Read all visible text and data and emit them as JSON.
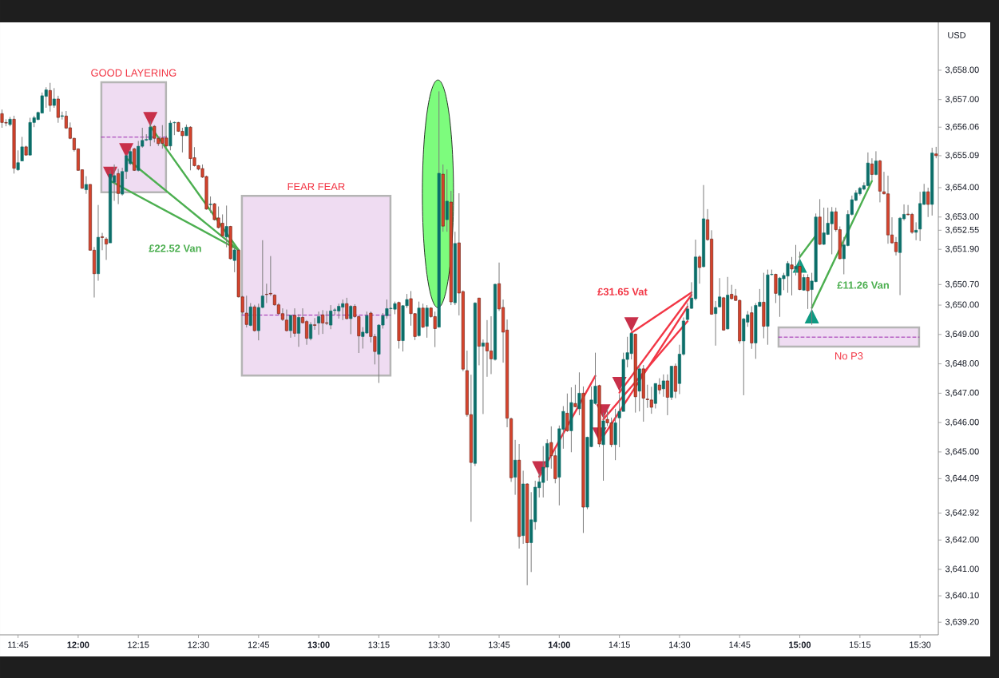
{
  "chart_data": {
    "type": "candlestick",
    "x": [
      11.6833,
      11.7,
      11.7167,
      11.7333,
      11.75,
      11.7667,
      11.7833,
      11.8,
      11.8167,
      11.8333,
      11.85,
      11.8667,
      11.8833,
      11.9,
      11.9167,
      11.9333,
      11.95,
      11.9667,
      11.9833,
      12,
      12.0167,
      12.0333,
      12.05,
      12.0667,
      12.0833,
      12.1,
      12.1167,
      12.1333,
      12.15,
      12.1667,
      12.1833,
      12.2,
      12.2167,
      12.2333,
      12.25,
      12.2667,
      12.2833,
      12.3,
      12.3167,
      12.3333,
      12.35,
      12.3667,
      12.3833,
      12.4,
      12.4167,
      12.4333,
      12.45,
      12.4667,
      12.4833,
      12.5,
      12.5167,
      12.5333,
      12.55,
      12.5667,
      12.5833,
      12.6,
      12.6167,
      12.6333,
      12.65,
      12.6667,
      12.6833,
      12.7,
      12.7167,
      12.7333,
      12.75,
      12.7667,
      12.7833,
      12.8,
      12.8167,
      12.8333,
      12.85,
      12.8667,
      12.8833,
      12.9,
      12.9167,
      12.9333,
      12.95,
      12.9667,
      12.9833,
      13,
      13.0167,
      13.0333,
      13.05,
      13.0667,
      13.0833,
      13.1,
      13.1167,
      13.1333,
      13.15,
      13.1667,
      13.1833,
      13.2,
      13.2167,
      13.2333,
      13.25,
      13.2667,
      13.2833,
      13.3,
      13.3167,
      13.3333,
      13.35,
      13.3667,
      13.3833,
      13.4,
      13.4167,
      13.4333,
      13.45,
      13.4667,
      13.4833,
      13.5,
      13.5167,
      13.5333,
      13.55,
      13.5667,
      13.5833,
      13.6,
      13.6167,
      13.6333,
      13.65,
      13.6667,
      13.6833,
      13.7,
      13.7167,
      13.7333,
      13.75,
      13.7667,
      13.7833,
      13.8,
      13.8167,
      13.8333,
      13.85,
      13.8667,
      13.8833,
      13.9,
      13.9167,
      13.9333,
      13.95,
      13.9667,
      13.9833,
      14,
      14.0167,
      14.0333,
      14.05,
      14.0667,
      14.0833,
      14.1,
      14.1167,
      14.1333,
      14.15,
      14.1667,
      14.1833,
      14.2,
      14.2167,
      14.2333,
      14.25,
      14.2667,
      14.2833,
      14.3,
      14.3167,
      14.3333,
      14.35,
      14.3667,
      14.3833,
      14.4,
      14.4167,
      14.4333,
      14.45,
      14.4667,
      14.4833,
      14.5,
      14.5167,
      14.5333,
      14.55,
      14.5667,
      14.5833,
      14.6,
      14.6167,
      14.6333,
      14.65,
      14.6667,
      14.6833,
      14.7,
      14.7167,
      14.7333,
      14.75,
      14.7667,
      14.7833,
      14.8,
      14.8167,
      14.8333,
      14.85,
      14.8667,
      14.8833,
      14.9,
      14.9167,
      14.9333,
      14.95,
      14.9667,
      14.9833,
      15,
      15.0167,
      15.0333,
      15.05,
      15.0667,
      15.0833,
      15.1,
      15.1167,
      15.1333,
      15.15,
      15.1667,
      15.1833,
      15.2,
      15.2167,
      15.2333,
      15.25,
      15.2667,
      15.2833,
      15.3,
      15.3167,
      15.3333,
      15.35,
      15.3667,
      15.3833,
      15.4,
      15.4167,
      15.4333,
      15.45,
      15.4667,
      15.4833,
      15.5,
      15.5167,
      15.5333,
      15.55,
      15.5667
    ],
    "ohlc": [
      [
        3656.52,
        3656.66,
        3656.04,
        3656.22
      ],
      [
        3656.22,
        3656.33,
        3656.09,
        3656.2
      ],
      [
        3656.15,
        3656.41,
        3656.09,
        3656.33
      ],
      [
        3656.33,
        3656.45,
        3654.48,
        3654.66
      ],
      [
        3654.61,
        3655.27,
        3654.57,
        3654.85
      ],
      [
        3654.91,
        3655.73,
        3654.9,
        3655.39
      ],
      [
        3655.39,
        3655.43,
        3655.09,
        3655.11
      ],
      [
        3655.11,
        3656.38,
        3655.09,
        3656.22
      ],
      [
        3656.22,
        3656.45,
        3656.06,
        3656.38
      ],
      [
        3656.32,
        3656.59,
        3656.3,
        3656.56
      ],
      [
        3656.54,
        3657.24,
        3656.53,
        3657.13
      ],
      [
        3657.11,
        3657.42,
        3656.72,
        3657.33
      ],
      [
        3657.31,
        3657.57,
        3656.59,
        3656.8
      ],
      [
        3656.8,
        3657.39,
        3656.72,
        3657.02
      ],
      [
        3657.02,
        3657.13,
        3656.21,
        3656.39
      ],
      [
        3656.43,
        3656.59,
        3656.32,
        3656.45
      ],
      [
        3656.44,
        3656.61,
        3656.0,
        3656.03
      ],
      [
        3656.04,
        3656.22,
        3655.65,
        3655.68
      ],
      [
        3655.68,
        3655.7,
        3655.23,
        3655.29
      ],
      [
        3655.32,
        3655.34,
        3654.58,
        3654.59
      ],
      [
        3654.61,
        3654.62,
        3653.96,
        3653.98
      ],
      [
        3653.93,
        3654.39,
        3653.79,
        3654.11
      ],
      [
        3654.11,
        3654.12,
        3651.85,
        3651.87
      ],
      [
        3651.87,
        3651.98,
        3650.26,
        3651.07
      ],
      [
        3651.07,
        3653.41,
        3650.83,
        3652.31
      ],
      [
        3652.33,
        3652.46,
        3651.87,
        3652.3
      ],
      [
        3652.25,
        3652.31,
        3651.54,
        3652.08
      ],
      [
        3652.12,
        3654.59,
        3652.12,
        3654.46
      ],
      [
        3654.18,
        3654.79,
        3653.55,
        3654.41
      ],
      [
        3654.48,
        3654.64,
        3653.44,
        3653.8
      ],
      [
        3653.78,
        3654.68,
        3653.73,
        3654.55
      ],
      [
        3654.55,
        3655.13,
        3654.3,
        3655.09
      ],
      [
        3654.82,
        3655.32,
        3654.77,
        3655.23
      ],
      [
        3655.32,
        3655.36,
        3654.57,
        3654.59
      ],
      [
        3654.59,
        3655.59,
        3654.55,
        3655.41
      ],
      [
        3655.41,
        3656.04,
        3655.36,
        3655.61
      ],
      [
        3655.62,
        3655.82,
        3655.59,
        3655.64
      ],
      [
        3655.63,
        3656.27,
        3655.41,
        3656.06
      ],
      [
        3656.09,
        3656.13,
        3655.54,
        3655.68
      ],
      [
        3655.68,
        3655.72,
        3655.42,
        3655.5
      ],
      [
        3655.69,
        3656.13,
        3655.33,
        3655.51
      ],
      [
        3655.69,
        3655.77,
        3655.4,
        3655.42
      ],
      [
        3655.42,
        3656.29,
        3655.27,
        3656.2
      ],
      [
        3656.21,
        3656.25,
        3655.79,
        3656.22
      ],
      [
        3656.22,
        3656.24,
        3655.9,
        3655.92
      ],
      [
        3655.92,
        3656.04,
        3655.2,
        3655.77
      ],
      [
        3655.77,
        3656.15,
        3655.77,
        3656.06
      ],
      [
        3656.06,
        3656.09,
        3654.59,
        3654.99
      ],
      [
        3655.02,
        3655.38,
        3654.72,
        3654.75
      ],
      [
        3654.75,
        3654.77,
        3654.59,
        3654.63
      ],
      [
        3654.65,
        3654.79,
        3654.33,
        3654.36
      ],
      [
        3654.38,
        3654.41,
        3653.25,
        3653.27
      ],
      [
        3653.42,
        3653.7,
        3653.14,
        3653.44
      ],
      [
        3653.45,
        3653.48,
        3652.88,
        3652.91
      ],
      [
        3652.97,
        3653.36,
        3652.61,
        3652.64
      ],
      [
        3652.79,
        3653.09,
        3652.32,
        3652.36
      ],
      [
        3652.32,
        3653.39,
        3651.97,
        3652.68
      ],
      [
        3652.68,
        3652.7,
        3651.55,
        3651.58
      ],
      [
        3651.52,
        3651.97,
        3651.12,
        3651.88
      ],
      [
        3651.87,
        3651.91,
        3650.26,
        3650.28
      ],
      [
        3650.28,
        3650.32,
        3649.69,
        3649.76
      ],
      [
        3649.73,
        3650.32,
        3649.24,
        3649.34
      ],
      [
        3649.31,
        3650.07,
        3649.28,
        3649.94
      ],
      [
        3649.94,
        3650.01,
        3649.1,
        3649.13
      ],
      [
        3649.13,
        3650.05,
        3648.8,
        3649.92
      ],
      [
        3649.92,
        3652.21,
        3649.89,
        3650.31
      ],
      [
        3650.37,
        3650.73,
        3650.07,
        3650.36
      ],
      [
        3650.4,
        3651.67,
        3650.31,
        3650.38
      ],
      [
        3650.34,
        3650.37,
        3649.98,
        3650.01
      ],
      [
        3650.01,
        3650.07,
        3649.67,
        3649.71
      ],
      [
        3649.71,
        3649.89,
        3649.46,
        3649.51
      ],
      [
        3649.49,
        3649.85,
        3649.1,
        3649.13
      ],
      [
        3649.13,
        3649.67,
        3648.89,
        3649.65
      ],
      [
        3649.65,
        3649.89,
        3648.92,
        3649.04
      ],
      [
        3649.04,
        3649.69,
        3648.58,
        3649.58
      ],
      [
        3649.58,
        3649.89,
        3649.37,
        3649.4
      ],
      [
        3649.44,
        3649.49,
        3648.65,
        3648.87
      ],
      [
        3648.86,
        3649.42,
        3648.8,
        3649.34
      ],
      [
        3649.33,
        3649.56,
        3649.16,
        3649.31
      ],
      [
        3649.39,
        3649.78,
        3648.99,
        3649.61
      ],
      [
        3649.67,
        3649.83,
        3649.02,
        3649.39
      ],
      [
        3649.4,
        3649.8,
        3649.32,
        3649.38
      ],
      [
        3649.32,
        3650.0,
        3649.18,
        3649.8
      ],
      [
        3649.82,
        3649.9,
        3649.67,
        3649.84
      ],
      [
        3649.8,
        3650.05,
        3649.54,
        3649.96
      ],
      [
        3649.93,
        3650.19,
        3649.49,
        3650.05
      ],
      [
        3650.05,
        3650.25,
        3649.51,
        3649.54
      ],
      [
        3649.54,
        3650.0,
        3649.01,
        3649.96
      ],
      [
        3649.96,
        3650.03,
        3649.57,
        3649.61
      ],
      [
        3649.61,
        3649.64,
        3648.37,
        3648.95
      ],
      [
        3648.93,
        3649.25,
        3648.52,
        3649.08
      ],
      [
        3649.05,
        3649.78,
        3649.02,
        3649.64
      ],
      [
        3649.73,
        3649.78,
        3648.73,
        3648.93
      ],
      [
        3648.93,
        3649.02,
        3647.98,
        3648.42
      ],
      [
        3648.33,
        3649.35,
        3647.35,
        3649.32
      ],
      [
        3649.32,
        3649.73,
        3649.2,
        3649.64
      ],
      [
        3649.64,
        3650.19,
        3649.54,
        3649.88
      ],
      [
        3649.88,
        3649.93,
        3649.86,
        3649.89
      ],
      [
        3649.86,
        3650.12,
        3649.69,
        3650.05
      ],
      [
        3650.09,
        3650.12,
        3648.52,
        3648.79
      ],
      [
        3648.79,
        3650.0,
        3648.42,
        3649.98
      ],
      [
        3649.98,
        3650.38,
        3649.9,
        3650.19
      ],
      [
        3650.22,
        3650.48,
        3649.3,
        3649.71
      ],
      [
        3649.71,
        3649.73,
        3648.81,
        3648.93
      ],
      [
        3648.96,
        3650.12,
        3648.93,
        3649.9
      ],
      [
        3649.9,
        3650.05,
        3649.22,
        3649.25
      ],
      [
        3649.28,
        3650.0,
        3648.89,
        3649.9
      ],
      [
        3649.9,
        3649.93,
        3649.57,
        3649.61
      ],
      [
        3649.61,
        3649.78,
        3648.57,
        3649.2
      ],
      [
        3649.25,
        3657.28,
        3649.25,
        3654.49
      ],
      [
        3654.46,
        3654.79,
        3652.5,
        3652.69
      ],
      [
        3652.91,
        3654.62,
        3652.5,
        3653.54
      ],
      [
        3653.51,
        3653.89,
        3650.0,
        3650.11
      ],
      [
        3650.08,
        3652.5,
        3650.0,
        3652.1
      ],
      [
        3652.12,
        3653.81,
        3649.65,
        3650.41
      ],
      [
        3650.46,
        3650.5,
        3647.75,
        3647.82
      ],
      [
        3647.77,
        3648.45,
        3646.2,
        3646.27
      ],
      [
        3646.27,
        3647.63,
        3642.62,
        3644.64
      ],
      [
        3644.61,
        3650.1,
        3644.52,
        3650.07
      ],
      [
        3650.24,
        3650.25,
        3647.95,
        3648.6
      ],
      [
        3648.6,
        3648.83,
        3646.29,
        3648.71
      ],
      [
        3648.71,
        3649.49,
        3647.56,
        3648.44
      ],
      [
        3648.44,
        3649.62,
        3647.65,
        3648.17
      ],
      [
        3648.15,
        3650.73,
        3648.11,
        3650.71
      ],
      [
        3650.73,
        3651.45,
        3649.8,
        3649.87
      ],
      [
        3649.92,
        3650.19,
        3648.04,
        3649.08
      ],
      [
        3649.15,
        3649.51,
        3645.84,
        3646.15
      ],
      [
        3646.13,
        3646.17,
        3643.98,
        3644.12
      ],
      [
        3644.14,
        3645.41,
        3643.54,
        3644.72
      ],
      [
        3644.72,
        3645.27,
        3641.71,
        3642.12
      ],
      [
        3642.15,
        3644.36,
        3641.87,
        3643.91
      ],
      [
        3643.91,
        3643.93,
        3640.46,
        3641.91
      ],
      [
        3641.91,
        3643.63,
        3640.91,
        3642.69
      ],
      [
        3642.62,
        3644.02,
        3642.35,
        3643.8
      ],
      [
        3643.78,
        3644.27,
        3643.45,
        3643.98
      ],
      [
        3643.96,
        3645.2,
        3643.45,
        3644.48
      ],
      [
        3644.48,
        3645.43,
        3644.02,
        3645.29
      ],
      [
        3645.32,
        3645.87,
        3644.43,
        3644.87
      ],
      [
        3644.87,
        3645.07,
        3643.93,
        3644.09
      ],
      [
        3644.14,
        3645.9,
        3643.18,
        3645.79
      ],
      [
        3645.77,
        3646.56,
        3645.11,
        3646.38
      ],
      [
        3646.32,
        3646.99,
        3645.68,
        3645.72
      ],
      [
        3645.72,
        3647.2,
        3644.99,
        3646.68
      ],
      [
        3646.65,
        3647.29,
        3646.52,
        3646.54
      ],
      [
        3646.47,
        3647.71,
        3646.25,
        3647.0
      ],
      [
        3647.0,
        3647.23,
        3642.24,
        3643.12
      ],
      [
        3643.12,
        3645.52,
        3643.05,
        3645.5
      ],
      [
        3645.18,
        3647.23,
        3645.16,
        3646.77
      ],
      [
        3646.65,
        3648.38,
        3646.61,
        3647.24
      ],
      [
        3647.26,
        3647.29,
        3645.16,
        3645.27
      ],
      [
        3645.25,
        3646.34,
        3644.02,
        3646.06
      ],
      [
        3646.11,
        3646.47,
        3645.88,
        3645.99
      ],
      [
        3645.99,
        3646.17,
        3645.16,
        3645.25
      ],
      [
        3645.25,
        3646.47,
        3644.72,
        3645.99
      ],
      [
        3646.16,
        3646.97,
        3645.16,
        3646.38
      ],
      [
        3646.38,
        3648.38,
        3646.38,
        3648.15
      ],
      [
        3648.15,
        3648.92,
        3647.88,
        3648.38
      ],
      [
        3648.35,
        3649.06,
        3648.15,
        3649.04
      ],
      [
        3649.01,
        3649.03,
        3646.34,
        3646.88
      ],
      [
        3647.07,
        3647.96,
        3646.38,
        3647.83
      ],
      [
        3647.83,
        3647.96,
        3646.03,
        3646.83
      ],
      [
        3646.8,
        3647.29,
        3646.5,
        3646.78
      ],
      [
        3646.77,
        3647.22,
        3646.3,
        3646.52
      ],
      [
        3646.65,
        3647.33,
        3646.48,
        3647.33
      ],
      [
        3647.28,
        3647.51,
        3646.97,
        3647.11
      ],
      [
        3647.15,
        3647.64,
        3646.88,
        3647.42
      ],
      [
        3647.42,
        3647.64,
        3646.25,
        3646.86
      ],
      [
        3646.86,
        3647.92,
        3646.77,
        3647.92
      ],
      [
        3647.92,
        3648.01,
        3646.83,
        3647.06
      ],
      [
        3647.33,
        3648.65,
        3646.97,
        3648.33
      ],
      [
        3648.33,
        3649.58,
        3648.28,
        3649.46
      ],
      [
        3649.51,
        3650.07,
        3649.46,
        3649.87
      ],
      [
        3649.89,
        3650.78,
        3649.87,
        3650.24
      ],
      [
        3650.22,
        3652.23,
        3650.16,
        3651.64
      ],
      [
        3651.64,
        3651.7,
        3650.73,
        3651.28
      ],
      [
        3651.31,
        3654.09,
        3651.28,
        3652.94
      ],
      [
        3652.91,
        3653.27,
        3652.19,
        3652.23
      ],
      [
        3652.25,
        3652.55,
        3649.67,
        3649.69
      ],
      [
        3649.71,
        3650.14,
        3648.62,
        3649.92
      ],
      [
        3649.94,
        3650.92,
        3649.92,
        3650.28
      ],
      [
        3650.25,
        3650.28,
        3649.13,
        3649.15
      ],
      [
        3649.19,
        3650.96,
        3649.17,
        3650.34
      ],
      [
        3650.37,
        3650.69,
        3650.19,
        3650.22
      ],
      [
        3650.31,
        3650.55,
        3650.14,
        3650.16
      ],
      [
        3650.16,
        3650.19,
        3648.69,
        3648.78
      ],
      [
        3648.78,
        3649.56,
        3646.93,
        3649.53
      ],
      [
        3649.42,
        3649.8,
        3649.26,
        3649.67
      ],
      [
        3649.74,
        3649.96,
        3648.51,
        3648.71
      ],
      [
        3648.71,
        3650.07,
        3648.17,
        3649.99
      ],
      [
        3649.96,
        3650.55,
        3649.94,
        3650.1
      ],
      [
        3650.1,
        3651.1,
        3648.87,
        3649.28
      ],
      [
        3649.28,
        3651.21,
        3648.65,
        3651.03
      ],
      [
        3651.04,
        3651.21,
        3651.01,
        3651.05
      ],
      [
        3651.05,
        3651.07,
        3650.07,
        3650.4
      ],
      [
        3650.34,
        3650.96,
        3649.6,
        3650.92
      ],
      [
        3650.9,
        3651.1,
        3650.51,
        3651.01
      ],
      [
        3650.99,
        3651.5,
        3650.42,
        3651.42
      ],
      [
        3651.37,
        3651.64,
        3650.33,
        3651.23
      ],
      [
        3651.23,
        3652.05,
        3651.01,
        3651.32
      ],
      [
        3651.32,
        3651.82,
        3650.51,
        3650.53
      ],
      [
        3650.51,
        3651.05,
        3650.49,
        3650.94
      ],
      [
        3650.94,
        3651.05,
        3649.87,
        3650.49
      ],
      [
        3650.53,
        3651.1,
        3649.33,
        3650.82
      ],
      [
        3650.8,
        3653.12,
        3650.78,
        3653.0
      ],
      [
        3653.0,
        3653.61,
        3652.05,
        3652.07
      ],
      [
        3652.07,
        3653.32,
        3652.05,
        3652.46
      ],
      [
        3652.41,
        3653.32,
        3652.39,
        3652.79
      ],
      [
        3652.77,
        3653.34,
        3651.73,
        3653.18
      ],
      [
        3653.18,
        3653.32,
        3652.5,
        3652.57
      ],
      [
        3652.57,
        3652.68,
        3651.56,
        3651.58
      ],
      [
        3651.58,
        3652.32,
        3651.05,
        3652.05
      ],
      [
        3652.03,
        3653.23,
        3652.0,
        3653.09
      ],
      [
        3653.09,
        3653.73,
        3653.05,
        3653.59
      ],
      [
        3653.57,
        3653.91,
        3653.54,
        3653.82
      ],
      [
        3653.79,
        3654.03,
        3653.73,
        3653.98
      ],
      [
        3653.95,
        3654.18,
        3653.91,
        3654.07
      ],
      [
        3654.07,
        3655.2,
        3654.04,
        3654.84
      ],
      [
        3654.81,
        3655.0,
        3654.27,
        3654.45
      ],
      [
        3654.45,
        3655.24,
        3654.42,
        3654.91
      ],
      [
        3654.91,
        3654.95,
        3653.5,
        3653.88
      ],
      [
        3653.86,
        3654.54,
        3653.77,
        3653.79
      ],
      [
        3653.79,
        3654.41,
        3652.09,
        3652.39
      ],
      [
        3652.39,
        3652.99,
        3652.09,
        3652.12
      ],
      [
        3652.14,
        3652.32,
        3651.69,
        3651.82
      ],
      [
        3651.79,
        3653.0,
        3650.34,
        3652.96
      ],
      [
        3652.94,
        3653.43,
        3652.88,
        3653.09
      ],
      [
        3653.1,
        3653.41,
        3653.05,
        3653.08
      ],
      [
        3653.09,
        3653.14,
        3652.43,
        3652.48
      ],
      [
        3652.48,
        3652.82,
        3652.21,
        3652.55
      ],
      [
        3652.59,
        3653.86,
        3652.18,
        3653.46
      ],
      [
        3653.43,
        3654.13,
        3653.41,
        3653.86
      ],
      [
        3653.86,
        3654.0,
        3653.0,
        3653.43
      ],
      [
        3653.43,
        3655.36,
        3653.05,
        3655.18
      ],
      [
        3655.15,
        3655.39,
        3655.0,
        3655.09
      ]
    ],
    "xlim": [
      11.675,
      15.576
    ],
    "ylim": [
      3638.77,
      3659.63
    ],
    "xticks": [
      {
        "value": 11.75,
        "label": "11:45"
      },
      {
        "value": 12,
        "label": "12:00"
      },
      {
        "value": 12.25,
        "label": "12:15"
      },
      {
        "value": 12.5,
        "label": "12:30"
      },
      {
        "value": 12.75,
        "label": "12:45"
      },
      {
        "value": 13,
        "label": "13:00"
      },
      {
        "value": 13.25,
        "label": "13:15"
      },
      {
        "value": 13.5,
        "label": "13:30"
      },
      {
        "value": 13.75,
        "label": "13:45"
      },
      {
        "value": 14,
        "label": "14:00"
      },
      {
        "value": 14.25,
        "label": "14:15"
      },
      {
        "value": 14.5,
        "label": "14:30"
      },
      {
        "value": 14.75,
        "label": "14:45"
      },
      {
        "value": 15,
        "label": "15:00"
      },
      {
        "value": 15.25,
        "label": "15:15"
      },
      {
        "value": 15.5,
        "label": "15:30"
      }
    ],
    "yticks": [
      {
        "value": 3639.2,
        "label": "3,639.20"
      },
      {
        "value": 3640.1,
        "label": "3,640.10"
      },
      {
        "value": 3641,
        "label": "3,641.00"
      },
      {
        "value": 3642,
        "label": "3,642.00"
      },
      {
        "value": 3642.92,
        "label": "3,642.92"
      },
      {
        "value": 3644.09,
        "label": "3,644.09"
      },
      {
        "value": 3645,
        "label": "3,645.00"
      },
      {
        "value": 3646,
        "label": "3,646.00"
      },
      {
        "value": 3647,
        "label": "3,647.00"
      },
      {
        "value": 3648,
        "label": "3,648.00"
      },
      {
        "value": 3649,
        "label": "3,649.00"
      },
      {
        "value": 3650,
        "label": "3,650.00"
      },
      {
        "value": 3650.7,
        "label": "3,650.70"
      },
      {
        "value": 3651.9,
        "label": "3,651.90"
      },
      {
        "value": 3652.55,
        "label": "3,652.55"
      },
      {
        "value": 3653,
        "label": "3,653.00"
      },
      {
        "value": 3654,
        "label": "3,654.00"
      },
      {
        "value": 3655.09,
        "label": "3,655.09"
      },
      {
        "value": 3656.06,
        "label": "3,656.06"
      },
      {
        "value": 3657,
        "label": "3,657.00"
      },
      {
        "value": 3658,
        "label": "3,658.00"
      }
    ],
    "ylabel": "USD",
    "series": [
      {
        "type": "line",
        "x": [
          12.0963,
          12.365
        ],
        "values": [
          3655.72,
          3655.72
        ],
        "lower": [
          3653.84,
          3653.84
        ],
        "upper": [
          3657.59,
          3657.59
        ],
        "color": "#9c27b0",
        "line_style": "dashed"
      },
      {
        "type": "line",
        "x": [
          12.6806,
          13.2982
        ],
        "values": [
          3649.66,
          3649.66
        ],
        "lower": [
          3647.6,
          3647.6
        ],
        "upper": [
          3653.72,
          3653.72
        ],
        "color": "#9c27b0",
        "line_style": "dashed"
      },
      {
        "type": "line",
        "x": [
          14.9118,
          15.496
        ],
        "values": [
          3648.91,
          3648.91
        ],
        "lower": [
          3648.59,
          3648.59
        ],
        "upper": [
          3649.24,
          3649.24
        ],
        "color": "#9c27b0",
        "line_style": "dashed"
      },
      {
        "type": "line",
        "x": [
          12.1333,
          12.6667
        ],
        "values": [
          3654.23,
          3651.88
        ],
        "color": "#4caf50"
      },
      {
        "type": "line",
        "x": [
          12.2,
          12.6667
        ],
        "values": [
          3655.0,
          3651.88
        ],
        "color": "#4caf50"
      },
      {
        "type": "line",
        "x": [
          12.3,
          12.6667
        ],
        "values": [
          3656.09,
          3651.88
        ],
        "color": "#4caf50"
      },
      {
        "type": "line",
        "x": [
          13.9167,
          14.15
        ],
        "values": [
          3644.16,
          3647.59
        ],
        "color": "#f23645"
      },
      {
        "type": "line",
        "x": [
          14.3,
          14.55
        ],
        "values": [
          3649.06,
          3650.43
        ],
        "color": "#f23645"
      },
      {
        "type": "line",
        "x": [
          14.25,
          14.55
        ],
        "values": [
          3647.02,
          3650.35
        ],
        "color": "#f23645"
      },
      {
        "type": "line",
        "x": [
          14.1667,
          14.5333
        ],
        "values": [
          3645.32,
          3649.95
        ],
        "color": "#f23645"
      },
      {
        "type": "line",
        "x": [
          14.1833,
          14.5333
        ],
        "values": [
          3646.11,
          3649.45
        ],
        "color": "#f23645"
      },
      {
        "type": "line",
        "x": [
          15.0,
          15.0667
        ],
        "values": [
          3651.64,
          3652.37
        ],
        "color": "#4caf50"
      },
      {
        "type": "line",
        "x": [
          15.05,
          15.3
        ],
        "values": [
          3649.91,
          3654.23
        ],
        "color": "#4caf50"
      },
      {
        "type": "scatter",
        "x": [
          12.1333,
          12.2,
          12.3,
          13.9167,
          14.1833,
          14.1667,
          14.25,
          14.3
        ],
        "values": [
          3654.47,
          3655.27,
          3656.33,
          3644.44,
          3646.38,
          3645.59,
          3647.31,
          3649.34
        ],
        "color": "#c8304a",
        "marker": "triangle"
      },
      {
        "type": "scatter",
        "x": [
          15.0,
          15.05
        ],
        "values": [
          3651.35,
          3649.62
        ],
        "color": "#0e9a82",
        "marker": "triangle"
      }
    ],
    "annotations": [
      {
        "text": "GOOD LAYERING",
        "x": 12.2307,
        "y": 3657.59
      },
      {
        "text": "FEAR FEAR",
        "x": 12.9894,
        "y": 3653.72
      },
      "£22.52 Van",
      "£31.65 Vat",
      {
        "text": "£11.26 Van",
        "x": 15.0946,
        "y": 3650.68
      },
      {
        "text": "No P3",
        "x": 15.2039,
        "y": 3648.59
      }
    ]
  }
}
